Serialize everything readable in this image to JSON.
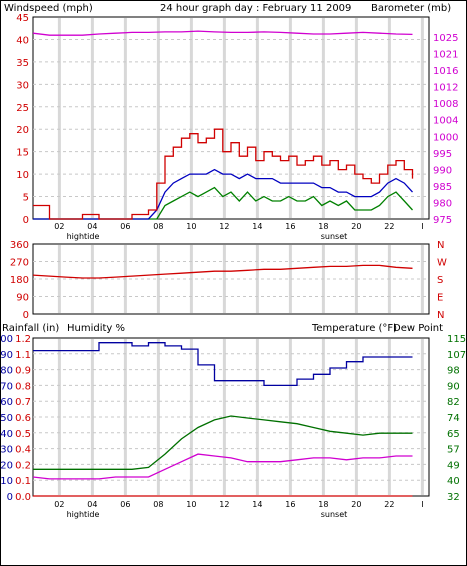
{
  "colors": {
    "wind": "#d00000",
    "gust": "#d00000",
    "baro": "#d000d0",
    "humidity": "#0000a0",
    "rain": "#d00000",
    "temp": "#007000",
    "dew": "#d000d0",
    "wind_avg": "#0000c0",
    "wind_low": "#008000",
    "grid": "#c8c8c8",
    "axis": "#000000"
  },
  "charts": {
    "top": {
      "left_label": "Windspeed (mph)",
      "title": "24 hour graph day : February 11 2009",
      "right_label": "Barometer (mb)",
      "x_ticks": [
        "02",
        "04",
        "06",
        "08",
        "10",
        "12",
        "14",
        "16",
        "18",
        "20",
        "22",
        "I"
      ],
      "x_marks": {
        "left": "hightide",
        "right": "sunset"
      },
      "y_left_ticks": [
        "45",
        "40",
        "35",
        "30",
        "25",
        "20",
        "15",
        "10",
        "5",
        "0"
      ],
      "y_right_ticks": [
        "1025",
        "1021",
        "1016",
        "1012",
        "1008",
        "1004",
        "1000",
        "995",
        "990",
        "985",
        "980",
        "975"
      ]
    },
    "mid": {
      "y_left_ticks": [
        "360",
        "270",
        "180",
        "90",
        "0"
      ],
      "dir_letters": [
        "N",
        "W",
        "S",
        "E",
        "N"
      ]
    },
    "bottom": {
      "left_label": "Rainfall (in)",
      "mid_label": "Humidity %",
      "right_label": "Temperature (°F)",
      "right_label2": "Dew Point",
      "x_ticks": [
        "02",
        "04",
        "06",
        "08",
        "10",
        "12",
        "14",
        "16",
        "18",
        "20",
        "22",
        "I"
      ],
      "x_marks": {
        "left": "hightide",
        "right": "sunset"
      },
      "y_hum_ticks": [
        "100",
        "90",
        "80",
        "70",
        "60",
        "50",
        "40",
        "30",
        "20",
        "10",
        "0"
      ],
      "y_rain_ticks": [
        "1.2",
        "1.1",
        "0.9",
        "0.8",
        "0.7",
        "0.6",
        "0.5",
        "0.4",
        "0.2",
        "0.1",
        "0.0"
      ],
      "y_right_ticks": [
        "115",
        "107",
        "98",
        "90",
        "82",
        "74",
        "65",
        "57",
        "49",
        "40",
        "32"
      ]
    }
  },
  "chart_data": [
    {
      "type": "line",
      "series": [
        {
          "x": [
            0,
            1,
            2,
            3,
            4,
            5,
            6,
            7,
            7.5,
            8,
            8.5,
            9,
            9.5,
            10,
            10.5,
            11,
            11.5,
            12,
            12.5,
            13,
            13.5,
            14,
            14.5,
            15,
            15.5,
            16,
            16.5,
            17,
            17.5,
            18,
            18.5,
            19,
            19.5,
            20,
            20.5,
            21,
            21.5,
            22,
            22.5,
            23
          ],
          "values": [
            3,
            0,
            0,
            1,
            0,
            0,
            1,
            2,
            8,
            14,
            16,
            18,
            19,
            17,
            18,
            20,
            15,
            17,
            14,
            16,
            13,
            15,
            14,
            13,
            14,
            12,
            13,
            14,
            12,
            13,
            11,
            12,
            10,
            9,
            8,
            10,
            12,
            13,
            11,
            9
          ]
        },
        {
          "x": [
            0,
            1,
            2,
            3,
            4,
            5,
            6,
            7,
            7.5,
            8,
            8.5,
            9,
            9.5,
            10,
            10.5,
            11,
            11.5,
            12,
            12.5,
            13,
            13.5,
            14,
            14.5,
            15,
            15.5,
            16,
            16.5,
            17,
            17.5,
            18,
            18.5,
            19,
            19.5,
            20,
            20.5,
            21,
            21.5,
            22,
            22.5,
            23
          ],
          "values": [
            0,
            0,
            0,
            0,
            0,
            0,
            0,
            0,
            2,
            6,
            8,
            9,
            10,
            10,
            10,
            11,
            10,
            10,
            9,
            10,
            9,
            9,
            9,
            8,
            8,
            8,
            8,
            8,
            7,
            7,
            6,
            6,
            5,
            5,
            5,
            6,
            8,
            9,
            8,
            6
          ]
        },
        {
          "x": [
            0,
            1,
            2,
            3,
            4,
            5,
            6,
            7,
            7.5,
            8,
            8.5,
            9,
            9.5,
            10,
            10.5,
            11,
            11.5,
            12,
            12.5,
            13,
            13.5,
            14,
            14.5,
            15,
            15.5,
            16,
            16.5,
            17,
            17.5,
            18,
            18.5,
            19,
            19.5,
            20,
            20.5,
            21,
            21.5,
            22,
            22.5,
            23
          ],
          "values": [
            0,
            0,
            0,
            0,
            0,
            0,
            0,
            0,
            0,
            3,
            4,
            5,
            6,
            5,
            6,
            7,
            5,
            6,
            4,
            6,
            4,
            5,
            4,
            4,
            5,
            4,
            4,
            5,
            3,
            4,
            3,
            4,
            2,
            2,
            2,
            3,
            5,
            6,
            4,
            2
          ]
        },
        {
          "x": [
            0,
            1,
            2,
            3,
            4,
            5,
            6,
            7,
            8,
            9,
            10,
            11,
            12,
            13,
            14,
            15,
            16,
            17,
            18,
            19,
            20,
            21,
            22,
            23
          ],
          "values": [
            1021,
            1020.5,
            1020.5,
            1020.5,
            1020.8,
            1021,
            1021.2,
            1021.2,
            1021.3,
            1021.3,
            1021.5,
            1021.3,
            1021.2,
            1021.2,
            1021.3,
            1021.2,
            1021,
            1020.8,
            1020.8,
            1021,
            1021.2,
            1021,
            1020.8,
            1020.7
          ]
        }
      ],
      "ylim": [
        0,
        45
      ],
      "y2lim": [
        975,
        1025
      ]
    },
    {
      "type": "line",
      "series": [
        {
          "x": [
            0,
            1,
            2,
            3,
            4,
            5,
            6,
            7,
            8,
            9,
            10,
            11,
            12,
            13,
            14,
            15,
            16,
            17,
            18,
            19,
            20,
            21,
            22,
            23
          ],
          "values": [
            200,
            195,
            190,
            185,
            185,
            190,
            195,
            200,
            205,
            210,
            215,
            220,
            220,
            225,
            230,
            230,
            235,
            240,
            245,
            245,
            250,
            250,
            240,
            235
          ]
        }
      ],
      "ylim": [
        0,
        360
      ]
    },
    {
      "type": "line",
      "series": [
        {
          "x": [
            0,
            0.5,
            1,
            2,
            3,
            4,
            5,
            6,
            7,
            8,
            9,
            10,
            11,
            12,
            13,
            14,
            15,
            16,
            17,
            18,
            19,
            20,
            21,
            22,
            23
          ],
          "values": [
            92,
            92,
            92,
            92,
            92,
            97,
            97,
            95,
            97,
            95,
            93,
            83,
            73,
            73,
            73,
            70,
            70,
            74,
            77,
            81,
            85,
            88,
            88,
            88,
            88
          ]
        },
        {
          "x": [
            0,
            1,
            2,
            3,
            4,
            5,
            6,
            7,
            8,
            9,
            10,
            11,
            12,
            13,
            14,
            15,
            16,
            17,
            18,
            19,
            20,
            21,
            22,
            23
          ],
          "values": [
            0,
            0,
            0,
            0,
            0,
            0,
            0,
            0,
            0,
            0,
            0,
            0,
            0,
            0,
            0,
            0,
            0,
            0,
            0,
            0,
            0,
            0,
            0,
            0
          ]
        },
        {
          "x": [
            0,
            1,
            2,
            3,
            4,
            5,
            6,
            7,
            8,
            9,
            10,
            11,
            12,
            13,
            14,
            15,
            16,
            17,
            18,
            19,
            20,
            21,
            22,
            23
          ],
          "values": [
            46,
            46,
            46,
            46,
            46,
            46,
            46,
            47,
            54,
            62,
            68,
            72,
            74,
            73,
            72,
            71,
            70,
            68,
            66,
            65,
            64,
            65,
            65,
            65
          ]
        },
        {
          "x": [
            0,
            1,
            2,
            3,
            4,
            5,
            6,
            7,
            8,
            9,
            10,
            11,
            12,
            13,
            14,
            15,
            16,
            17,
            18,
            19,
            20,
            21,
            22,
            23
          ],
          "values": [
            42,
            41,
            41,
            41,
            41,
            42,
            42,
            42,
            46,
            50,
            54,
            53,
            52,
            50,
            50,
            50,
            51,
            52,
            52,
            51,
            52,
            52,
            53,
            53
          ]
        }
      ],
      "ylim": [
        0,
        100
      ]
    }
  ]
}
